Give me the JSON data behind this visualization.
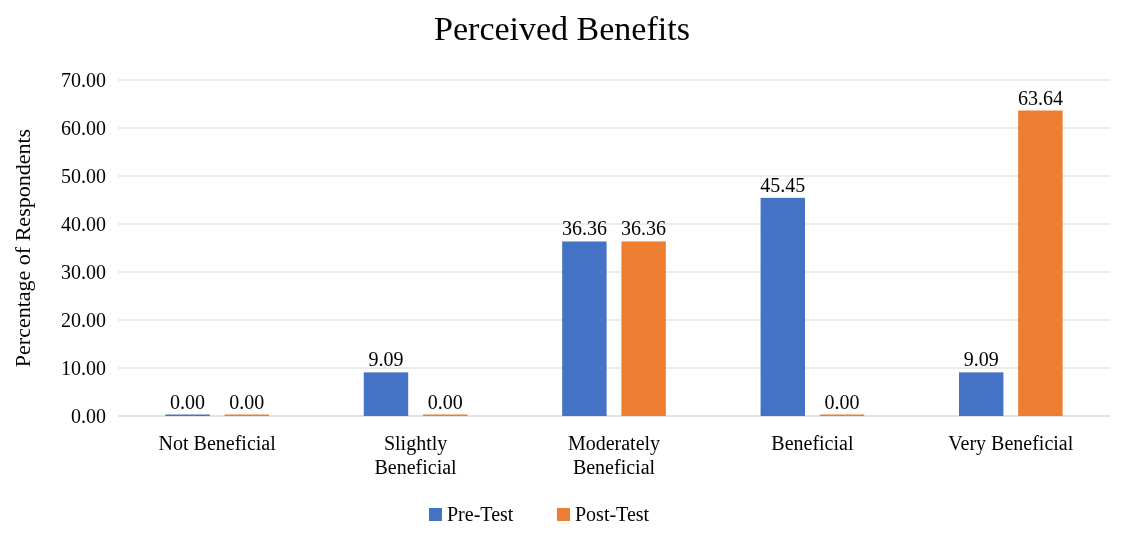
{
  "chart_data": {
    "type": "bar",
    "title": "Perceived Benefits",
    "ylabel": "Percentage of Respondents",
    "categories": [
      "Not Beneficial",
      "Slightly Beneficial",
      "Moderately Beneficial",
      "Beneficial",
      "Very Beneficial"
    ],
    "series": [
      {
        "name": "Pre-Test",
        "color": "#4472c4",
        "values": [
          0,
          9.09,
          36.36,
          45.45,
          9.09
        ],
        "value_labels": [
          "0.00",
          "9.09",
          "36.36",
          "45.45",
          "9.09"
        ]
      },
      {
        "name": "Post-Test",
        "color": "#ed7d31",
        "values": [
          0,
          0,
          36.36,
          0,
          63.64
        ],
        "value_labels": [
          "0.00",
          "0.00",
          "36.36",
          "0.00",
          "63.64"
        ]
      }
    ],
    "ylim": [
      0,
      70
    ],
    "yticks": [
      {
        "value": 0,
        "label": "0.00"
      },
      {
        "value": 10,
        "label": "10.00"
      },
      {
        "value": 20,
        "label": "20.00"
      },
      {
        "value": 30,
        "label": "30.00"
      },
      {
        "value": 40,
        "label": "40.00"
      },
      {
        "value": 50,
        "label": "50.00"
      },
      {
        "value": 60,
        "label": "60.00"
      },
      {
        "value": 70,
        "label": "70.00"
      }
    ],
    "grid": "y",
    "legend": "bottom"
  }
}
